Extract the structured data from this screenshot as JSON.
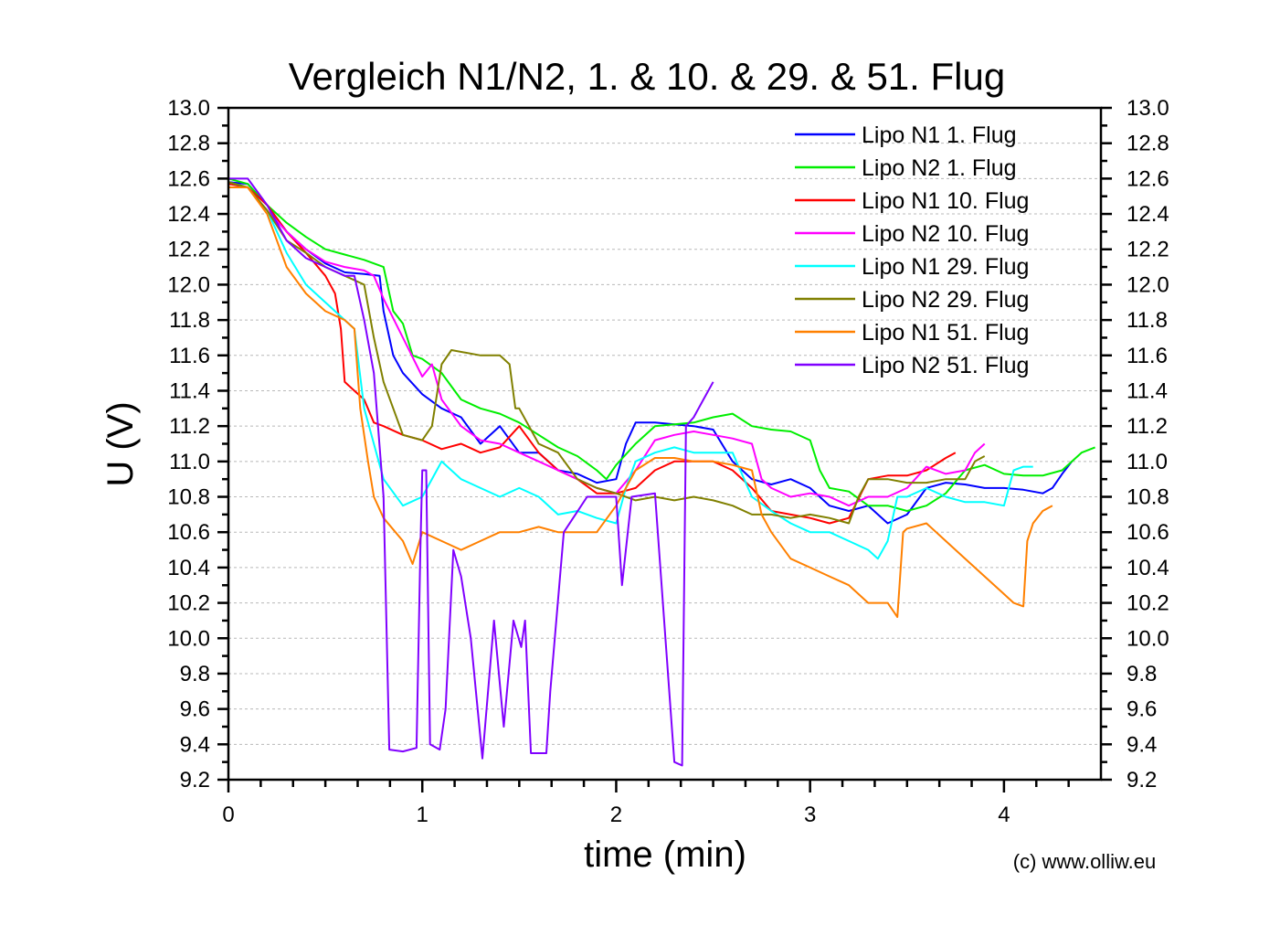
{
  "chart_data": {
    "type": "line",
    "title": "Vergleich N1/N2, 1. & 10. & 29. & 51. Flug",
    "xlabel": "time (min)",
    "ylabel": "U (V)",
    "xlim": [
      0,
      4.5
    ],
    "ylim": [
      9.2,
      13.0
    ],
    "x_ticks": [
      "0",
      "1",
      "2",
      "3",
      "4"
    ],
    "x_tick_values": [
      0,
      1,
      2,
      3,
      4
    ],
    "x_minor_step": 0.16667,
    "y_ticks": [
      "13.0",
      "12.8",
      "12.6",
      "12.4",
      "12.2",
      "12.0",
      "11.8",
      "11.6",
      "11.4",
      "11.2",
      "11.0",
      "10.8",
      "10.6",
      "10.4",
      "10.2",
      "10.0",
      "9.8",
      "9.6",
      "9.4",
      "9.2"
    ],
    "y_tick_values": [
      13.0,
      12.8,
      12.6,
      12.4,
      12.2,
      12.0,
      11.8,
      11.6,
      11.4,
      11.2,
      11.0,
      10.8,
      10.6,
      10.4,
      10.2,
      10.0,
      9.8,
      9.6,
      9.4,
      9.2
    ],
    "y_axis_mirrored_right": true,
    "grid": "horizontal dashed",
    "legend_position": "top-right",
    "annotation": "(c) www.olliw.eu",
    "series": [
      {
        "name": "Lipo N1 1. Flug",
        "color": "#0000ff",
        "x": [
          0,
          0.1,
          0.2,
          0.3,
          0.4,
          0.5,
          0.6,
          0.7,
          0.78,
          0.8,
          0.85,
          0.9,
          1.0,
          1.1,
          1.2,
          1.3,
          1.4,
          1.5,
          1.6,
          1.7,
          1.8,
          1.9,
          2.0,
          2.05,
          2.1,
          2.2,
          2.4,
          2.5,
          2.6,
          2.7,
          2.8,
          2.9,
          3.0,
          3.1,
          3.2,
          3.3,
          3.4,
          3.5,
          3.6,
          3.7,
          3.8,
          3.9,
          4.0,
          4.1,
          4.2,
          4.25,
          4.3,
          4.35
        ],
        "y": [
          12.58,
          12.57,
          12.45,
          12.3,
          12.2,
          12.12,
          12.07,
          12.06,
          12.05,
          11.85,
          11.6,
          11.5,
          11.38,
          11.3,
          11.25,
          11.1,
          11.2,
          11.05,
          11.05,
          10.95,
          10.93,
          10.88,
          10.9,
          11.1,
          11.22,
          11.22,
          11.2,
          11.18,
          11.0,
          10.9,
          10.87,
          10.9,
          10.85,
          10.75,
          10.72,
          10.75,
          10.65,
          10.7,
          10.85,
          10.88,
          10.87,
          10.85,
          10.85,
          10.84,
          10.82,
          10.85,
          10.93,
          11.0
        ]
      },
      {
        "name": "Lipo N2 1. Flug",
        "color": "#00ee00",
        "x": [
          0,
          0.1,
          0.2,
          0.3,
          0.4,
          0.5,
          0.6,
          0.7,
          0.8,
          0.85,
          0.9,
          0.95,
          1.0,
          1.1,
          1.2,
          1.3,
          1.4,
          1.5,
          1.6,
          1.7,
          1.8,
          1.9,
          1.95,
          2.0,
          2.1,
          2.2,
          2.4,
          2.5,
          2.6,
          2.7,
          2.8,
          2.9,
          3.0,
          3.05,
          3.1,
          3.2,
          3.3,
          3.4,
          3.5,
          3.6,
          3.7,
          3.8,
          3.9,
          4.0,
          4.1,
          4.2,
          4.3,
          4.4,
          4.47
        ],
        "y": [
          12.6,
          12.57,
          12.45,
          12.35,
          12.27,
          12.2,
          12.17,
          12.14,
          12.1,
          11.85,
          11.78,
          11.6,
          11.58,
          11.5,
          11.35,
          11.3,
          11.27,
          11.22,
          11.15,
          11.08,
          11.03,
          10.95,
          10.9,
          10.98,
          11.1,
          11.2,
          11.22,
          11.25,
          11.27,
          11.2,
          11.18,
          11.17,
          11.12,
          10.95,
          10.85,
          10.83,
          10.75,
          10.75,
          10.72,
          10.75,
          10.82,
          10.95,
          10.98,
          10.93,
          10.92,
          10.92,
          10.95,
          11.05,
          11.08
        ]
      },
      {
        "name": "Lipo N1 10. Flug",
        "color": "#ff0000",
        "x": [
          0,
          0.1,
          0.2,
          0.3,
          0.4,
          0.5,
          0.55,
          0.58,
          0.6,
          0.65,
          0.7,
          0.75,
          0.8,
          0.9,
          1.0,
          1.1,
          1.2,
          1.3,
          1.4,
          1.5,
          1.6,
          1.7,
          1.8,
          1.9,
          2.0,
          2.1,
          2.2,
          2.3,
          2.4,
          2.5,
          2.6,
          2.7,
          2.8,
          2.9,
          3.0,
          3.1,
          3.2,
          3.3,
          3.4,
          3.5,
          3.6,
          3.7,
          3.75
        ],
        "y": [
          12.57,
          12.55,
          12.45,
          12.3,
          12.18,
          12.05,
          11.95,
          11.75,
          11.45,
          11.4,
          11.35,
          11.22,
          11.2,
          11.15,
          11.12,
          11.07,
          11.1,
          11.05,
          11.08,
          11.2,
          11.05,
          10.95,
          10.9,
          10.82,
          10.82,
          10.85,
          10.95,
          11.0,
          11.0,
          11.0,
          10.95,
          10.85,
          10.72,
          10.7,
          10.68,
          10.65,
          10.68,
          10.9,
          10.92,
          10.92,
          10.95,
          11.02,
          11.05
        ]
      },
      {
        "name": "Lipo N2 10. Flug",
        "color": "#ff00ff",
        "x": [
          0,
          0.1,
          0.2,
          0.3,
          0.4,
          0.5,
          0.6,
          0.7,
          0.75,
          0.8,
          0.9,
          1.0,
          1.05,
          1.1,
          1.2,
          1.3,
          1.4,
          1.5,
          1.6,
          1.7,
          1.8,
          1.9,
          2.0,
          2.1,
          2.2,
          2.3,
          2.4,
          2.5,
          2.6,
          2.7,
          2.75,
          2.8,
          2.9,
          3.0,
          3.1,
          3.2,
          3.3,
          3.4,
          3.5,
          3.6,
          3.7,
          3.8,
          3.85,
          3.9
        ],
        "y": [
          12.55,
          12.55,
          12.42,
          12.3,
          12.2,
          12.13,
          12.1,
          12.08,
          12.05,
          11.92,
          11.7,
          11.48,
          11.55,
          11.35,
          11.2,
          11.12,
          11.1,
          11.05,
          11.0,
          10.95,
          10.9,
          10.85,
          10.82,
          10.95,
          11.12,
          11.15,
          11.17,
          11.15,
          11.13,
          11.1,
          10.9,
          10.85,
          10.8,
          10.82,
          10.8,
          10.75,
          10.8,
          10.8,
          10.85,
          10.97,
          10.93,
          10.95,
          11.05,
          11.1
        ]
      },
      {
        "name": "Lipo N1 29. Flug",
        "color": "#00ffff",
        "x": [
          0,
          0.1,
          0.2,
          0.3,
          0.4,
          0.5,
          0.6,
          0.65,
          0.7,
          0.75,
          0.8,
          0.9,
          1.0,
          1.1,
          1.2,
          1.3,
          1.4,
          1.5,
          1.6,
          1.7,
          1.8,
          1.9,
          2.0,
          2.05,
          2.1,
          2.2,
          2.3,
          2.4,
          2.5,
          2.6,
          2.7,
          2.8,
          2.9,
          3.0,
          3.1,
          3.2,
          3.3,
          3.35,
          3.4,
          3.45,
          3.5,
          3.6,
          3.7,
          3.8,
          3.9,
          4.0,
          4.05,
          4.1,
          4.15
        ],
        "y": [
          12.58,
          12.55,
          12.42,
          12.18,
          12.0,
          11.9,
          11.8,
          11.75,
          11.3,
          11.1,
          10.9,
          10.75,
          10.8,
          11.0,
          10.9,
          10.85,
          10.8,
          10.85,
          10.8,
          10.7,
          10.72,
          10.68,
          10.65,
          10.85,
          11.0,
          11.05,
          11.08,
          11.05,
          11.05,
          11.05,
          10.8,
          10.72,
          10.65,
          10.6,
          10.6,
          10.55,
          10.5,
          10.45,
          10.55,
          10.8,
          10.8,
          10.85,
          10.8,
          10.77,
          10.77,
          10.75,
          10.95,
          10.97,
          10.97
        ]
      },
      {
        "name": "Lipo N2 29. Flug",
        "color": "#808000",
        "x": [
          0,
          0.1,
          0.2,
          0.3,
          0.4,
          0.5,
          0.6,
          0.7,
          0.75,
          0.8,
          0.85,
          0.9,
          1.0,
          1.05,
          1.1,
          1.15,
          1.3,
          1.4,
          1.45,
          1.48,
          1.5,
          1.6,
          1.7,
          1.8,
          1.9,
          2.0,
          2.1,
          2.2,
          2.3,
          2.4,
          2.5,
          2.6,
          2.7,
          2.8,
          2.9,
          3.0,
          3.1,
          3.2,
          3.25,
          3.3,
          3.4,
          3.5,
          3.6,
          3.7,
          3.8,
          3.85,
          3.9
        ],
        "y": [
          12.58,
          12.55,
          12.42,
          12.25,
          12.18,
          12.1,
          12.05,
          12.0,
          11.7,
          11.45,
          11.3,
          11.15,
          11.12,
          11.2,
          11.55,
          11.63,
          11.6,
          11.6,
          11.55,
          11.3,
          11.3,
          11.1,
          11.05,
          10.9,
          10.85,
          10.82,
          10.78,
          10.8,
          10.78,
          10.8,
          10.78,
          10.75,
          10.7,
          10.7,
          10.68,
          10.7,
          10.68,
          10.65,
          10.8,
          10.9,
          10.9,
          10.88,
          10.88,
          10.9,
          10.9,
          11.0,
          11.03
        ]
      },
      {
        "name": "Lipo N1 51. Flug",
        "color": "#ff8000",
        "x": [
          0,
          0.1,
          0.2,
          0.3,
          0.4,
          0.5,
          0.6,
          0.65,
          0.68,
          0.72,
          0.75,
          0.8,
          0.9,
          0.95,
          1.0,
          1.1,
          1.2,
          1.3,
          1.4,
          1.5,
          1.6,
          1.7,
          1.8,
          1.9,
          2.0,
          2.1,
          2.2,
          2.3,
          2.4,
          2.5,
          2.6,
          2.7,
          2.75,
          2.8,
          2.9,
          3.0,
          3.1,
          3.2,
          3.3,
          3.4,
          3.45,
          3.48,
          3.5,
          3.6,
          3.7,
          3.8,
          3.9,
          4.0,
          4.05,
          4.1,
          4.12,
          4.15,
          4.2,
          4.25
        ],
        "y": [
          12.55,
          12.55,
          12.4,
          12.1,
          11.95,
          11.85,
          11.8,
          11.75,
          11.3,
          11.0,
          10.8,
          10.68,
          10.55,
          10.42,
          10.6,
          10.55,
          10.5,
          10.55,
          10.6,
          10.6,
          10.63,
          10.6,
          10.6,
          10.6,
          10.75,
          10.95,
          11.02,
          11.02,
          11.0,
          11.0,
          10.98,
          10.95,
          10.7,
          10.6,
          10.45,
          10.4,
          10.35,
          10.3,
          10.2,
          10.2,
          10.12,
          10.6,
          10.62,
          10.65,
          10.55,
          10.45,
          10.35,
          10.25,
          10.2,
          10.18,
          10.55,
          10.65,
          10.72,
          10.75
        ]
      },
      {
        "name": "Lipo N2 51. Flug",
        "color": "#8000ff",
        "x": [
          0,
          0.1,
          0.2,
          0.3,
          0.4,
          0.5,
          0.6,
          0.65,
          0.7,
          0.75,
          0.8,
          0.83,
          0.9,
          0.97,
          0.99,
          1.0,
          1.02,
          1.04,
          1.09,
          1.12,
          1.16,
          1.2,
          1.25,
          1.31,
          1.37,
          1.42,
          1.47,
          1.51,
          1.53,
          1.56,
          1.64,
          1.66,
          1.73,
          1.85,
          2.0,
          2.03,
          2.08,
          2.2,
          2.3,
          2.34,
          2.36,
          2.4,
          2.45,
          2.5
        ],
        "y": [
          12.6,
          12.6,
          12.45,
          12.25,
          12.15,
          12.1,
          12.05,
          12.05,
          11.8,
          11.5,
          10.8,
          9.37,
          9.36,
          9.38,
          10.5,
          10.95,
          10.95,
          9.4,
          9.37,
          9.6,
          10.5,
          10.35,
          10.0,
          9.32,
          10.1,
          9.5,
          10.1,
          9.95,
          10.1,
          9.35,
          9.35,
          9.7,
          10.6,
          10.8,
          10.8,
          10.3,
          10.8,
          10.82,
          9.3,
          9.28,
          11.2,
          11.25,
          11.35,
          11.45
        ]
      }
    ]
  }
}
